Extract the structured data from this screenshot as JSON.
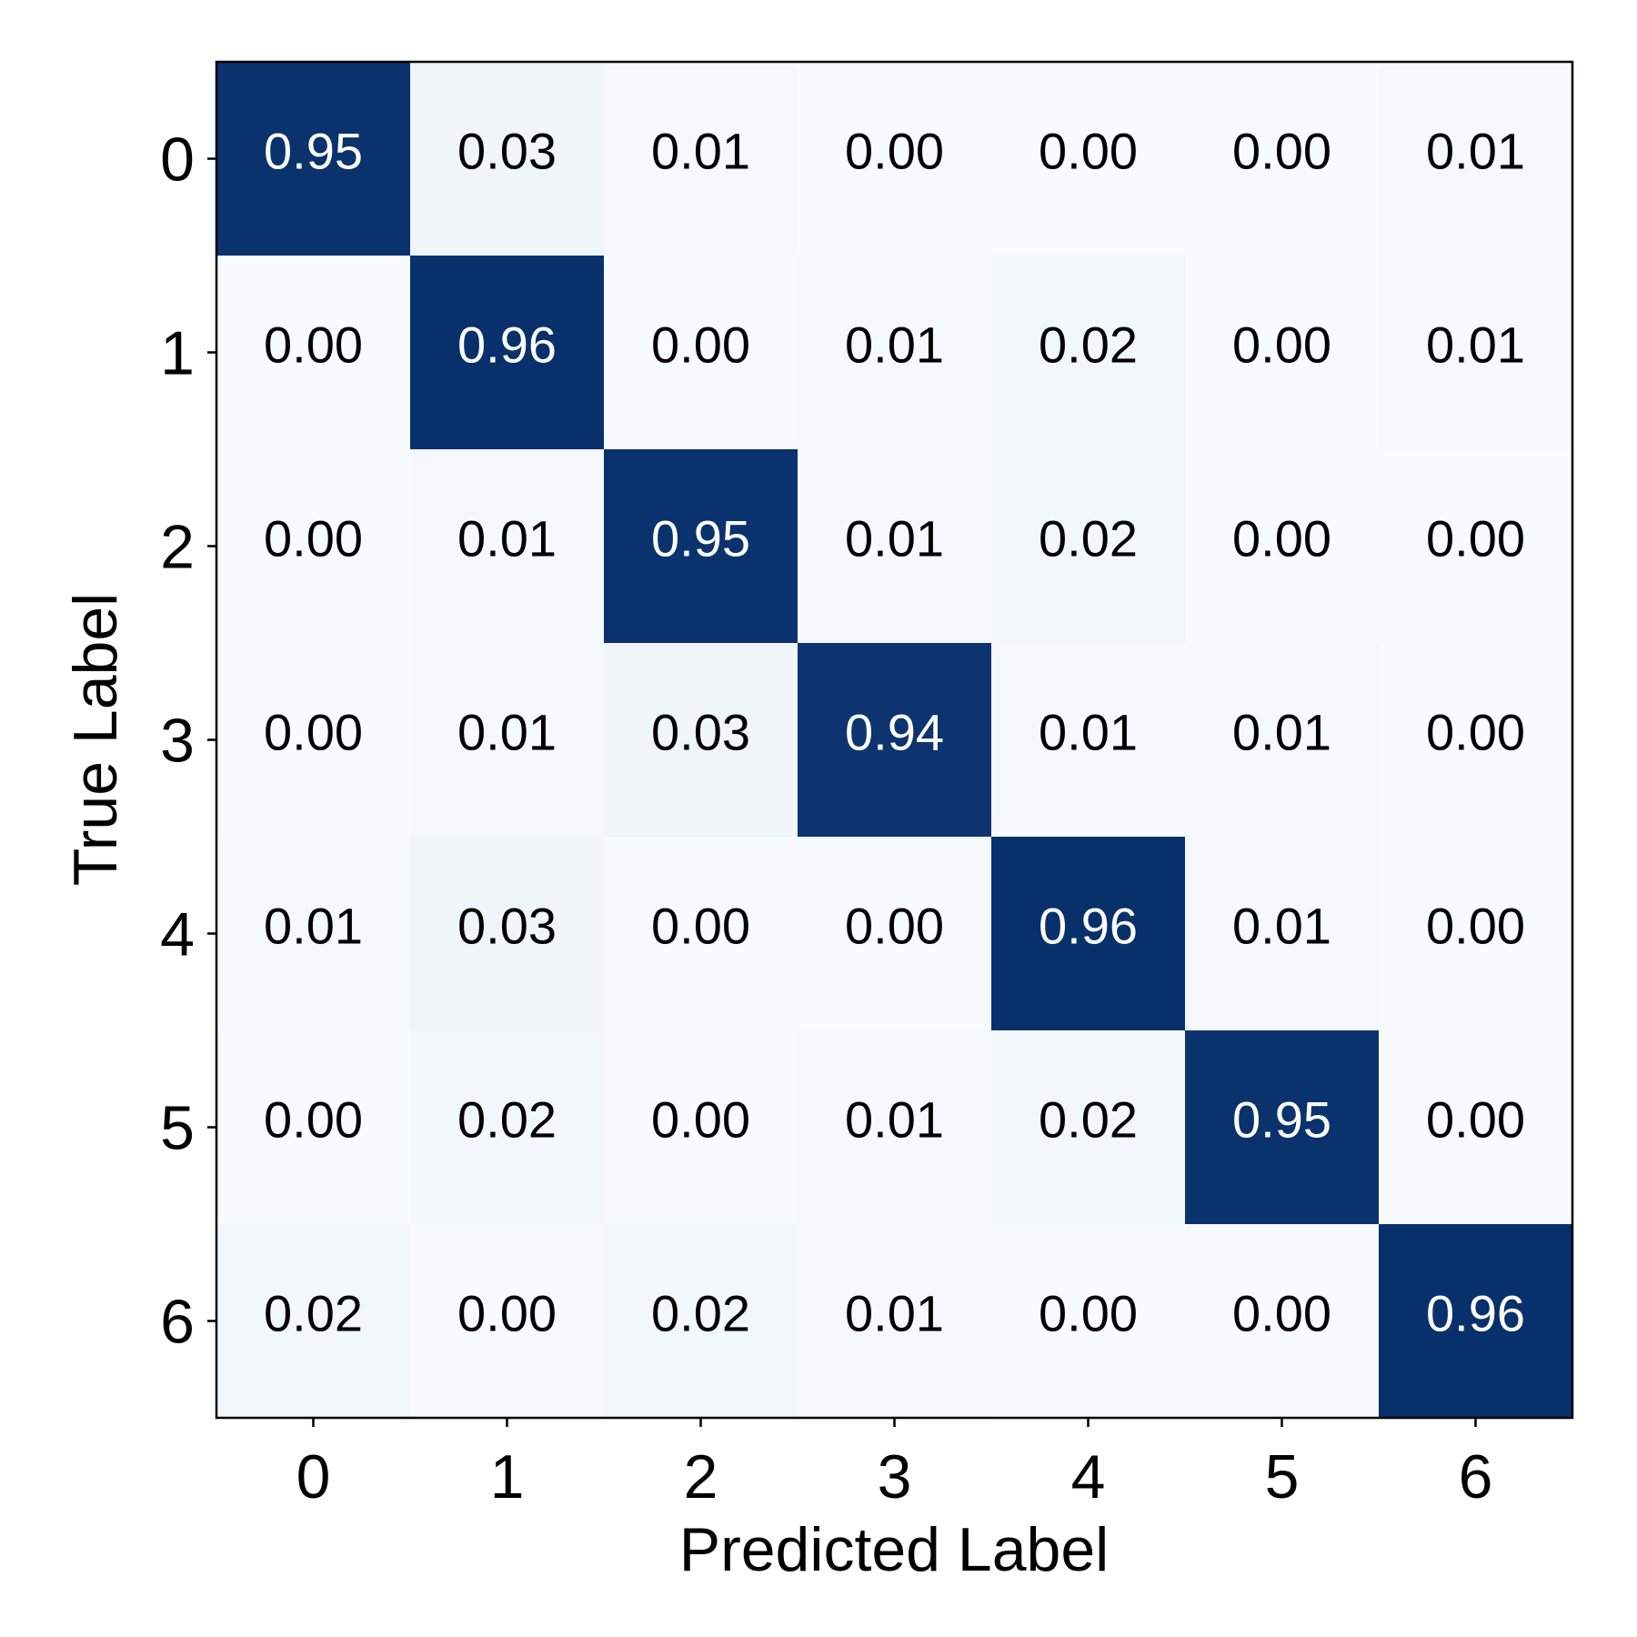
{
  "chart_data": {
    "type": "heatmap",
    "title": "",
    "xlabel": "Predicted Label",
    "ylabel": "True Label",
    "x_categories": [
      "0",
      "1",
      "2",
      "3",
      "4",
      "5",
      "6"
    ],
    "y_categories": [
      "0",
      "1",
      "2",
      "3",
      "4",
      "5",
      "6"
    ],
    "values": [
      [
        0.95,
        0.03,
        0.01,
        0.0,
        0.0,
        0.0,
        0.01
      ],
      [
        0.0,
        0.96,
        0.0,
        0.01,
        0.02,
        0.0,
        0.01
      ],
      [
        0.0,
        0.01,
        0.95,
        0.01,
        0.02,
        0.0,
        0.0
      ],
      [
        0.0,
        0.01,
        0.03,
        0.94,
        0.01,
        0.01,
        0.0
      ],
      [
        0.01,
        0.03,
        0.0,
        0.0,
        0.96,
        0.01,
        0.0
      ],
      [
        0.0,
        0.02,
        0.0,
        0.01,
        0.02,
        0.95,
        0.0
      ],
      [
        0.02,
        0.0,
        0.02,
        0.01,
        0.0,
        0.0,
        0.96
      ]
    ],
    "value_format": "0.00",
    "colormap": "Blues",
    "color_low": "#f7fbff",
    "color_high": "#08306b",
    "text_color_dark_cell": "#ffffff",
    "text_color_light_cell": "#000000",
    "vmin": 0.0,
    "vmax": 0.96,
    "grid": false,
    "legend": "none"
  }
}
